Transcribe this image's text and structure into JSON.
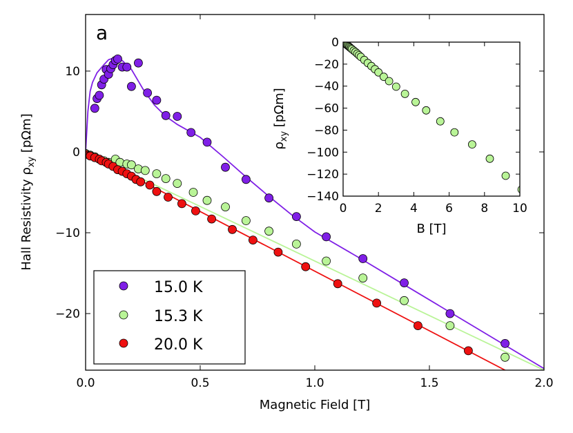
{
  "chart_data": [
    {
      "type": "scatter",
      "panel_label": "a",
      "xlabel": "Magnetic Field [T]",
      "ylabel_main": "Hall Resistivity ",
      "ylabel_sym": "ρ",
      "ylabel_sub": "xy",
      "ylabel_unit": " [pΩm]",
      "xlim": [
        0.0,
        2.0
      ],
      "ylim": [
        -27,
        17
      ],
      "xticks": [
        0.0,
        0.5,
        1.0,
        1.5,
        2.0
      ],
      "xtick_labels": [
        "0.0",
        "0.5",
        "1.0",
        "1.5",
        "2.0"
      ],
      "yticks": [
        -20,
        -10,
        0,
        10
      ],
      "ytick_labels": [
        "−20",
        "−10",
        "0",
        "10"
      ],
      "legend_position": "bottom-left",
      "series": [
        {
          "name": "15.0 K",
          "color": "#7f1fe6",
          "points": [
            [
              0.04,
              5.4
            ],
            [
              0.05,
              6.6
            ],
            [
              0.06,
              7.0
            ],
            [
              0.07,
              8.3
            ],
            [
              0.08,
              9.0
            ],
            [
              0.09,
              10.2
            ],
            [
              0.1,
              9.6
            ],
            [
              0.11,
              10.3
            ],
            [
              0.12,
              10.8
            ],
            [
              0.13,
              11.3
            ],
            [
              0.14,
              11.5
            ],
            [
              0.16,
              10.5
            ],
            [
              0.18,
              10.5
            ],
            [
              0.2,
              8.1
            ],
            [
              0.23,
              11.0
            ],
            [
              0.27,
              7.3
            ],
            [
              0.31,
              6.4
            ],
            [
              0.35,
              4.5
            ],
            [
              0.4,
              4.4
            ],
            [
              0.46,
              2.4
            ],
            [
              0.53,
              1.2
            ],
            [
              0.61,
              -1.9
            ],
            [
              0.7,
              -3.4
            ],
            [
              0.8,
              -5.7
            ],
            [
              0.92,
              -8.0
            ],
            [
              1.05,
              -10.5
            ],
            [
              1.21,
              -13.2
            ],
            [
              1.39,
              -16.2
            ],
            [
              1.59,
              -20.0
            ],
            [
              1.83,
              -23.7
            ]
          ],
          "fit": [
            [
              0.0,
              0.0
            ],
            [
              0.01,
              5.0
            ],
            [
              0.02,
              7.5
            ],
            [
              0.03,
              8.6
            ],
            [
              0.05,
              9.8
            ],
            [
              0.08,
              10.8
            ],
            [
              0.1,
              11.4
            ],
            [
              0.13,
              11.7
            ],
            [
              0.16,
              11.3
            ],
            [
              0.2,
              10.2
            ],
            [
              0.25,
              7.8
            ],
            [
              0.3,
              5.8
            ],
            [
              0.35,
              4.4
            ],
            [
              0.4,
              3.4
            ],
            [
              0.5,
              1.8
            ],
            [
              0.6,
              -0.6
            ],
            [
              0.7,
              -3.1
            ],
            [
              0.8,
              -5.5
            ],
            [
              0.9,
              -7.8
            ],
            [
              1.0,
              -9.9
            ],
            [
              1.2,
              -13.2
            ],
            [
              1.4,
              -16.6
            ],
            [
              1.6,
              -20.0
            ],
            [
              1.8,
              -23.4
            ],
            [
              2.0,
              -26.8
            ]
          ]
        },
        {
          "name": "15.3 K",
          "color": "#b9f497",
          "points": [
            [
              0.0,
              -0.2
            ],
            [
              0.02,
              -0.4
            ],
            [
              0.04,
              -0.6
            ],
            [
              0.06,
              -0.9
            ],
            [
              0.08,
              -1.1
            ],
            [
              0.1,
              -1.3
            ],
            [
              0.13,
              -0.9
            ],
            [
              0.15,
              -1.3
            ],
            [
              0.18,
              -1.5
            ],
            [
              0.2,
              -1.6
            ],
            [
              0.23,
              -2.1
            ],
            [
              0.26,
              -2.3
            ],
            [
              0.31,
              -2.7
            ],
            [
              0.35,
              -3.3
            ],
            [
              0.4,
              -3.9
            ],
            [
              0.47,
              -5.0
            ],
            [
              0.53,
              -6.0
            ],
            [
              0.61,
              -6.8
            ],
            [
              0.7,
              -8.5
            ],
            [
              0.8,
              -9.8
            ],
            [
              0.92,
              -11.4
            ],
            [
              1.05,
              -13.5
            ],
            [
              1.21,
              -15.6
            ],
            [
              1.39,
              -18.4
            ],
            [
              1.59,
              -21.5
            ],
            [
              1.83,
              -25.4
            ]
          ],
          "fit": [
            [
              0.0,
              0.0
            ],
            [
              2.0,
              -27.0
            ]
          ]
        },
        {
          "name": "20.0 K",
          "color": "#ee1111",
          "points": [
            [
              0.0,
              -0.3
            ],
            [
              0.02,
              -0.5
            ],
            [
              0.04,
              -0.7
            ],
            [
              0.06,
              -0.9
            ],
            [
              0.07,
              -1.1
            ],
            [
              0.09,
              -1.3
            ],
            [
              0.1,
              -1.5
            ],
            [
              0.12,
              -1.8
            ],
            [
              0.14,
              -2.2
            ],
            [
              0.16,
              -2.4
            ],
            [
              0.18,
              -2.7
            ],
            [
              0.2,
              -3.0
            ],
            [
              0.22,
              -3.4
            ],
            [
              0.24,
              -3.7
            ],
            [
              0.28,
              -4.1
            ],
            [
              0.31,
              -4.9
            ],
            [
              0.36,
              -5.6
            ],
            [
              0.42,
              -6.4
            ],
            [
              0.48,
              -7.3
            ],
            [
              0.55,
              -8.3
            ],
            [
              0.64,
              -9.6
            ],
            [
              0.73,
              -10.9
            ],
            [
              0.84,
              -12.4
            ],
            [
              0.96,
              -14.2
            ],
            [
              1.1,
              -16.3
            ],
            [
              1.27,
              -18.7
            ],
            [
              1.45,
              -21.5
            ],
            [
              1.67,
              -24.6
            ]
          ],
          "fit": [
            [
              0.0,
              0.0
            ],
            [
              1.83,
              -27.0
            ]
          ]
        }
      ]
    },
    {
      "type": "scatter",
      "position": "inset-top-right",
      "xlabel": "B [T]",
      "ylabel_sym": "ρ",
      "ylabel_sub": "xy",
      "ylabel_unit": " [pΩm]",
      "xlim": [
        0,
        10
      ],
      "ylim": [
        -140,
        0
      ],
      "xticks": [
        0,
        2,
        4,
        6,
        8,
        10
      ],
      "xtick_labels": [
        "0",
        "2",
        "4",
        "6",
        "8",
        "10"
      ],
      "yticks": [
        0,
        -20,
        -40,
        -60,
        -80,
        -100,
        -120,
        -140
      ],
      "ytick_labels": [
        "0",
        "−20",
        "−40",
        "−60",
        "−80",
        "−100",
        "−120",
        "−140"
      ],
      "series": [
        {
          "name": "15.3 K",
          "color": "#b9f497",
          "points": [
            [
              0.05,
              -0.6
            ],
            [
              0.1,
              -1.2
            ],
            [
              0.15,
              -1.8
            ],
            [
              0.2,
              -2.4
            ],
            [
              0.25,
              -3.0
            ],
            [
              0.3,
              -3.7
            ],
            [
              0.35,
              -4.3
            ],
            [
              0.4,
              -5.0
            ],
            [
              0.45,
              -5.7
            ],
            [
              0.5,
              -6.4
            ],
            [
              0.6,
              -7.7
            ],
            [
              0.7,
              -9.0
            ],
            [
              0.8,
              -10.5
            ],
            [
              0.9,
              -11.9
            ],
            [
              1.0,
              -13.4
            ],
            [
              1.2,
              -16.2
            ],
            [
              1.4,
              -19.0
            ],
            [
              1.6,
              -21.8
            ],
            [
              1.8,
              -24.6
            ],
            [
              2.0,
              -27.5
            ],
            [
              2.3,
              -31.5
            ],
            [
              2.6,
              -35.5
            ],
            [
              3.0,
              -40.5
            ],
            [
              3.5,
              -47.0
            ],
            [
              4.1,
              -54.5
            ],
            [
              4.7,
              -62.0
            ],
            [
              5.5,
              -72.0
            ],
            [
              6.3,
              -82.0
            ],
            [
              7.3,
              -93.0
            ],
            [
              8.3,
              -106.0
            ],
            [
              9.2,
              -121.5
            ],
            [
              10.1,
              -134.0
            ]
          ]
        }
      ]
    }
  ]
}
